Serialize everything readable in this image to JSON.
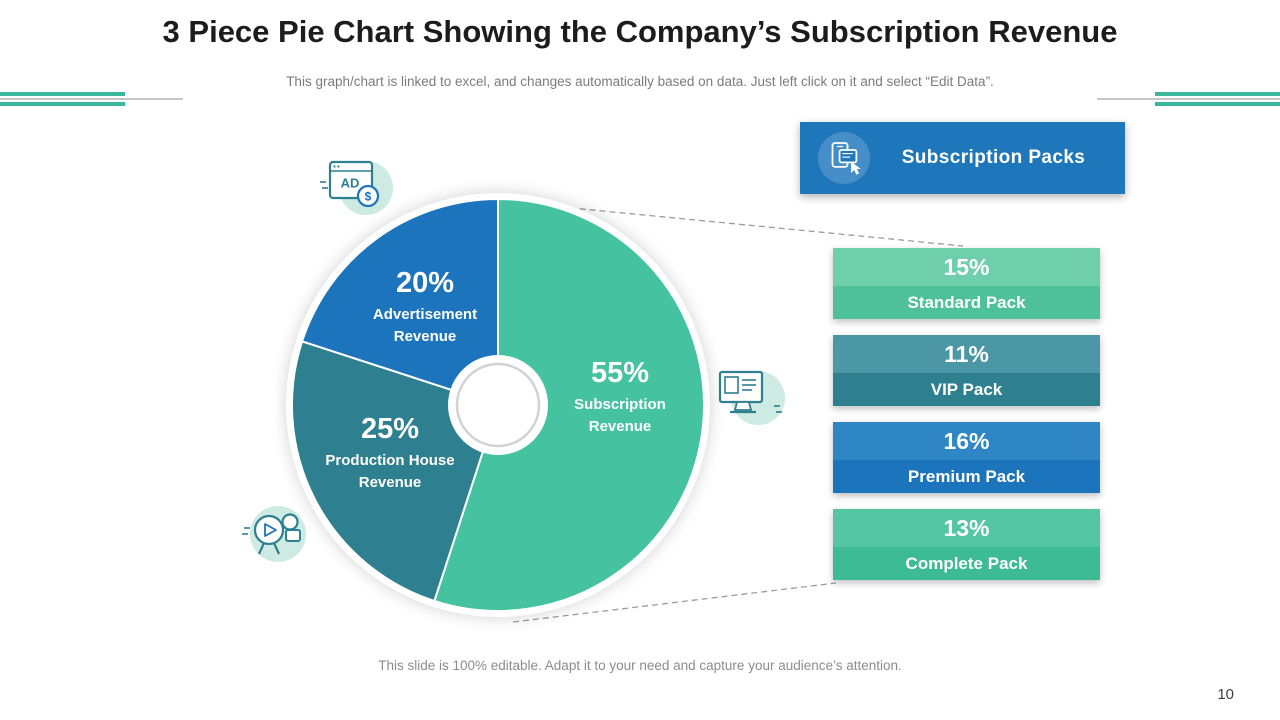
{
  "page": {
    "title": "3 Piece Pie Chart Showing the Company’s Subscription Revenue",
    "subtitle": "This graph/chart is linked to excel, and changes automatically based on data. Just left click on it and select “Edit Data”.",
    "footer": "This slide is 100% editable. Adapt it to your need and capture your audience’s attention.",
    "page_number": "10"
  },
  "header_card": {
    "label": "Subscription Packs",
    "color": "#1E76BB",
    "icon": "devices-subscription-icon"
  },
  "icons": {
    "advertisement": "ad-browser-dollar-icon",
    "subscription": "monitor-document-icon",
    "production": "video-camera-icon",
    "packs": "devices-subscription-icon"
  },
  "chart_data": [
    {
      "type": "pie",
      "title": "3 Piece Pie Chart Showing the Company’s Subscription Revenue",
      "donut": true,
      "start_angle_deg": 0,
      "direction": "clockwise",
      "slices": [
        {
          "label": "Subscription Revenue",
          "value": 55,
          "display": "55%",
          "color": "#45C2A0"
        },
        {
          "label": "Production House Revenue",
          "value": 25,
          "display": "25%",
          "color": "#2E7F8F"
        },
        {
          "label": "Advertisement Revenue",
          "value": 20,
          "display": "20%",
          "color": "#1C74BC"
        }
      ]
    },
    {
      "type": "table",
      "title": "Subscription Packs",
      "rows": [
        {
          "label": "Standard Pack",
          "value": 15,
          "display": "15%",
          "color_top": "#6FCEAB",
          "color_bottom": "#4EC09A"
        },
        {
          "label": "VIP Pack",
          "value": 11,
          "display": "11%",
          "color_top": "#4C97A6",
          "color_bottom": "#2E7F8F"
        },
        {
          "label": "Premium Pack",
          "value": 16,
          "display": "16%",
          "color_top": "#2E86C4",
          "color_bottom": "#1C74BC"
        },
        {
          "label": "Complete Pack",
          "value": 13,
          "display": "13%",
          "color_top": "#55C6A2",
          "color_bottom": "#3DBB92"
        }
      ]
    }
  ]
}
